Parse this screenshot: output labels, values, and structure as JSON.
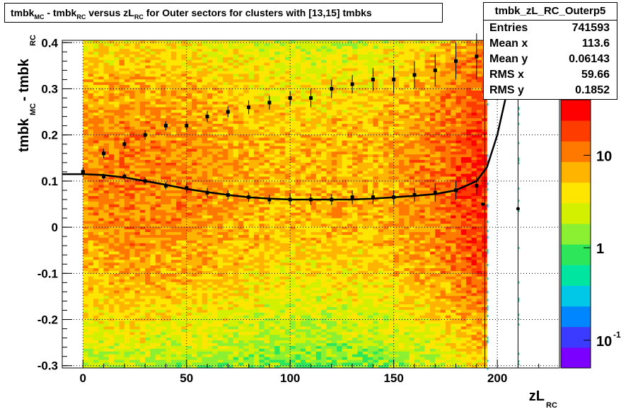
{
  "title": {
    "parts": [
      {
        "text": "tmbk",
        "sub": "MC"
      },
      {
        "text": " - tmbk",
        "sub": "RC"
      },
      {
        "text": " versus zL",
        "sub": "RC"
      },
      {
        "text": " for Outer sectors for clusters with [13,15] tmbks",
        "sub": ""
      }
    ]
  },
  "stats": {
    "name": "tmbk_zL_RC_Outerp5",
    "rows": [
      {
        "label": "Entries",
        "value": "741593"
      },
      {
        "label": "Mean x",
        "value": "113.6"
      },
      {
        "label": "Mean y",
        "value": "0.06143"
      },
      {
        "label": "RMS x",
        "value": "59.66"
      },
      {
        "label": "RMS y",
        "value": "0.1852"
      }
    ]
  },
  "colors": {
    "palette": [
      "#7b00ff",
      "#3b3bff",
      "#0087ff",
      "#00c8e6",
      "#00e6a0",
      "#2ee65a",
      "#8cf032",
      "#d2f000",
      "#ffe600",
      "#ffb400",
      "#ff7800",
      "#ff3c00",
      "#ff0000"
    ],
    "axis": "#000000",
    "grid": "#000000"
  },
  "chart_data": {
    "type": "heatmap",
    "xlabel": "zL",
    "xlabel_sub": "RC",
    "ylabel": "tmbk",
    "ylabel_sub1": "MC",
    "ylabel_mid": " - tmbk",
    "ylabel_sub2": "RC",
    "xlim": [
      -10,
      230
    ],
    "ylim": [
      -0.305,
      0.405
    ],
    "xticks": [
      0,
      50,
      100,
      150,
      200
    ],
    "yticks": [
      -0.3,
      -0.2,
      -0.1,
      0,
      0.1,
      0.2,
      0.3,
      0.4
    ],
    "ytick_labels": [
      "-0.3",
      "-0.2",
      "-0.1",
      "0",
      "0.1",
      "0.2",
      "0.3",
      "0.4"
    ],
    "grid": true,
    "zscale": "log",
    "zticks": [
      {
        "value": 0.1,
        "base": "10",
        "exp": "-1"
      },
      {
        "value": 1,
        "base": "1",
        "exp": ""
      },
      {
        "value": 10,
        "base": "10",
        "exp": ""
      }
    ],
    "heatmap": {
      "x_range": [
        0,
        195
      ],
      "y_range": [
        -0.305,
        0.405
      ],
      "level_by_x": [
        {
          "x": 0,
          "level": 9.5
        },
        {
          "x": 20,
          "level": 10
        },
        {
          "x": 60,
          "level": 9.5
        },
        {
          "x": 100,
          "level": 8.8
        },
        {
          "x": 140,
          "level": 9
        },
        {
          "x": 170,
          "level": 10
        },
        {
          "x": 185,
          "level": 11
        },
        {
          "x": 195,
          "level": 11.5
        }
      ],
      "edge_drop": 2.5,
      "center_y": 0.1
    },
    "series": [
      {
        "name": "",
        "style": "profile-markers",
        "x": [
          0,
          10,
          20,
          30,
          40,
          50,
          60,
          70,
          80,
          90,
          100,
          110,
          120,
          130,
          140,
          150,
          160,
          170,
          180,
          190
        ],
        "y": [
          0.12,
          0.16,
          0.18,
          0.2,
          0.22,
          0.22,
          0.24,
          0.25,
          0.26,
          0.27,
          0.28,
          0.28,
          0.3,
          0.31,
          0.32,
          0.32,
          0.33,
          0.34,
          0.36,
          0.37
        ],
        "yerr": [
          0.01,
          0.01,
          0.01,
          0.01,
          0.01,
          0.01,
          0.012,
          0.012,
          0.015,
          0.015,
          0.015,
          0.02,
          0.02,
          0.02,
          0.025,
          0.03,
          0.03,
          0.035,
          0.04,
          0.05
        ]
      },
      {
        "name": "",
        "style": "profile-markers",
        "x": [
          0,
          10,
          20,
          30,
          40,
          50,
          60,
          70,
          80,
          90,
          100,
          110,
          120,
          130,
          140,
          150,
          160,
          170,
          180,
          190
        ],
        "y": [
          0.12,
          0.11,
          0.11,
          0.1,
          0.09,
          0.085,
          0.075,
          0.07,
          0.065,
          0.06,
          0.06,
          0.06,
          0.06,
          0.065,
          0.065,
          0.065,
          0.07,
          0.075,
          0.08,
          0.09
        ],
        "yerr": [
          0.006,
          0.006,
          0.007,
          0.008,
          0.008,
          0.01,
          0.01,
          0.01,
          0.01,
          0.01,
          0.012,
          0.012,
          0.012,
          0.015,
          0.015,
          0.015,
          0.015,
          0.02,
          0.02,
          0.02
        ]
      },
      {
        "name": "",
        "style": "fit-curve",
        "x": [
          -10,
          0,
          10,
          20,
          30,
          40,
          50,
          60,
          70,
          80,
          90,
          100,
          110,
          120,
          130,
          140,
          150,
          160,
          170,
          180,
          190,
          195,
          200,
          205
        ],
        "y": [
          0.115,
          0.115,
          0.113,
          0.108,
          0.1,
          0.092,
          0.083,
          0.076,
          0.07,
          0.065,
          0.062,
          0.06,
          0.06,
          0.06,
          0.06,
          0.062,
          0.065,
          0.068,
          0.072,
          0.08,
          0.1,
          0.13,
          0.2,
          0.3
        ]
      }
    ],
    "extra_points": [
      {
        "x": 193,
        "y": 0.05
      },
      {
        "x": 210,
        "y": 0.04
      }
    ]
  }
}
